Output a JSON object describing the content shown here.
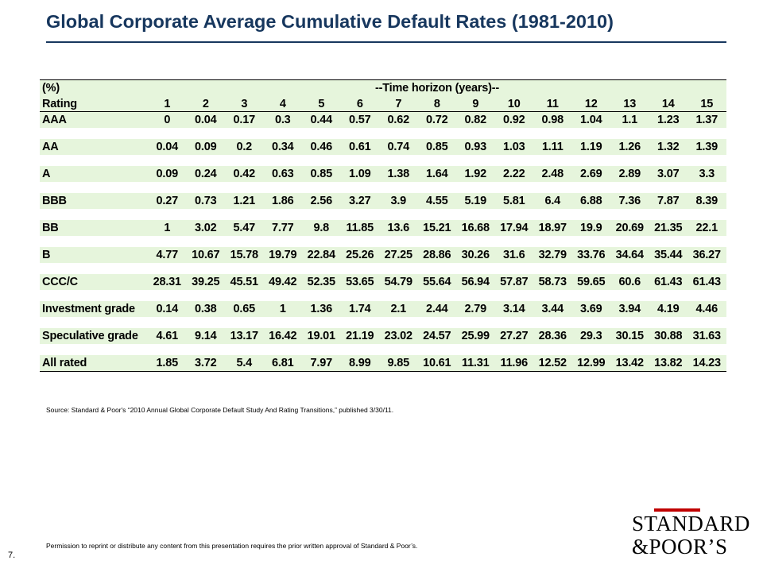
{
  "title": "Global Corporate Average Cumulative Default Rates (1981-2010)",
  "table": {
    "unit_label": "(%)",
    "horizon_label": "--Time horizon (years)--",
    "rating_header": "Rating",
    "years": [
      "1",
      "2",
      "3",
      "4",
      "5",
      "6",
      "7",
      "8",
      "9",
      "10",
      "11",
      "12",
      "13",
      "14",
      "15"
    ],
    "rows": [
      {
        "label": "AAA",
        "values": [
          "0",
          "0.04",
          "0.17",
          "0.3",
          "0.44",
          "0.57",
          "0.62",
          "0.72",
          "0.82",
          "0.92",
          "0.98",
          "1.04",
          "1.1",
          "1.23",
          "1.37"
        ]
      },
      {
        "label": "AA",
        "values": [
          "0.04",
          "0.09",
          "0.2",
          "0.34",
          "0.46",
          "0.61",
          "0.74",
          "0.85",
          "0.93",
          "1.03",
          "1.11",
          "1.19",
          "1.26",
          "1.32",
          "1.39"
        ]
      },
      {
        "label": "A",
        "values": [
          "0.09",
          "0.24",
          "0.42",
          "0.63",
          "0.85",
          "1.09",
          "1.38",
          "1.64",
          "1.92",
          "2.22",
          "2.48",
          "2.69",
          "2.89",
          "3.07",
          "3.3"
        ]
      },
      {
        "label": "BBB",
        "values": [
          "0.27",
          "0.73",
          "1.21",
          "1.86",
          "2.56",
          "3.27",
          "3.9",
          "4.55",
          "5.19",
          "5.81",
          "6.4",
          "6.88",
          "7.36",
          "7.87",
          "8.39"
        ]
      },
      {
        "label": "BB",
        "values": [
          "1",
          "3.02",
          "5.47",
          "7.77",
          "9.8",
          "11.85",
          "13.6",
          "15.21",
          "16.68",
          "17.94",
          "18.97",
          "19.9",
          "20.69",
          "21.35",
          "22.1"
        ]
      },
      {
        "label": "B",
        "values": [
          "4.77",
          "10.67",
          "15.78",
          "19.79",
          "22.84",
          "25.26",
          "27.25",
          "28.86",
          "30.26",
          "31.6",
          "32.79",
          "33.76",
          "34.64",
          "35.44",
          "36.27"
        ]
      },
      {
        "label": "CCC/C",
        "values": [
          "28.31",
          "39.25",
          "45.51",
          "49.42",
          "52.35",
          "53.65",
          "54.79",
          "55.64",
          "56.94",
          "57.87",
          "58.73",
          "59.65",
          "60.6",
          "61.43",
          "61.43"
        ]
      },
      {
        "label": "Investment grade",
        "values": [
          "0.14",
          "0.38",
          "0.65",
          "1",
          "1.36",
          "1.74",
          "2.1",
          "2.44",
          "2.79",
          "3.14",
          "3.44",
          "3.69",
          "3.94",
          "4.19",
          "4.46"
        ]
      },
      {
        "label": "Speculative grade",
        "values": [
          "4.61",
          "9.14",
          "13.17",
          "16.42",
          "19.01",
          "21.19",
          "23.02",
          "24.57",
          "25.99",
          "27.27",
          "28.36",
          "29.3",
          "30.15",
          "30.88",
          "31.63"
        ]
      },
      {
        "label": "All rated",
        "values": [
          "1.85",
          "3.72",
          "5.4",
          "6.81",
          "7.97",
          "8.99",
          "9.85",
          "10.61",
          "11.31",
          "11.96",
          "12.52",
          "12.99",
          "13.42",
          "13.82",
          "14.23"
        ]
      }
    ]
  },
  "source": "Source: Standard & Poor's “2010 Annual Global Corporate Default Study And Rating Transitions,” published 3/30/11.",
  "footer": {
    "page_number": "7.",
    "permission": "Permission to reprint or distribute any content from this presentation requires the prior written approval of Standard & Poor’s."
  },
  "logo": {
    "line1": "STANDARD",
    "line2": "&POOR’S",
    "accent_color": "#c00000"
  },
  "colors": {
    "title": "#17375e",
    "table_band": "#e6f5dc"
  }
}
